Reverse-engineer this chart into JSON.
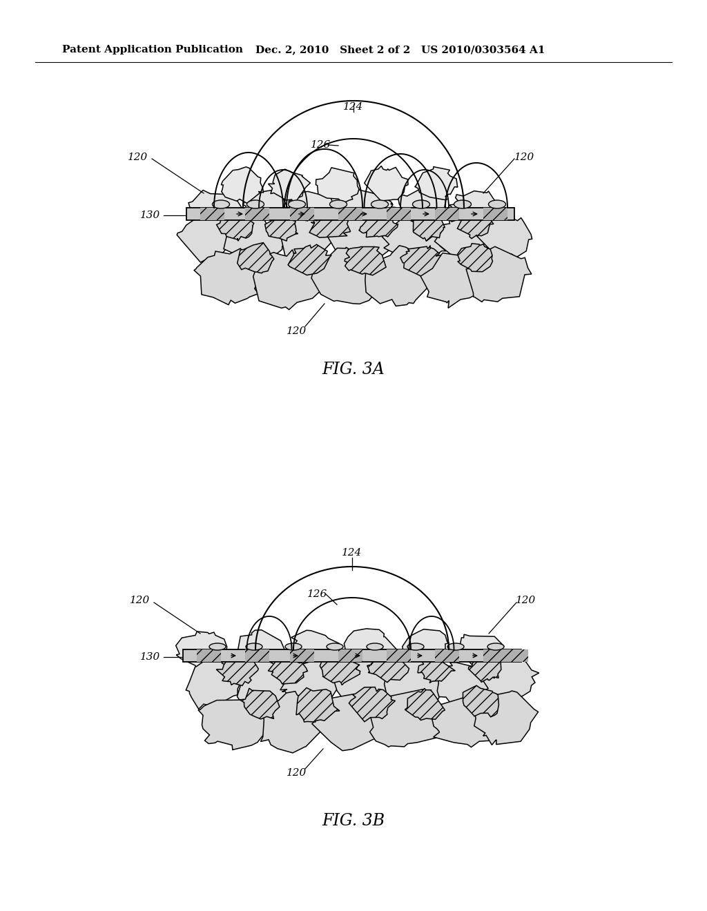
{
  "header_left": "Patent Application Publication",
  "header_mid": "Dec. 2, 2010   Sheet 2 of 2",
  "header_right": "US 2010/0303564 A1",
  "fig_a_label": "FIG. 3A",
  "fig_b_label": "FIG. 3B",
  "background_color": "#ffffff",
  "line_color": "#000000",
  "fill_dotted": "#d8d8d8",
  "fill_hatch": "#c0c0c0"
}
